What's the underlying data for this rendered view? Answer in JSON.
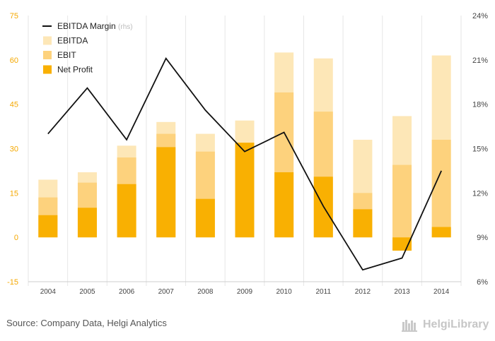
{
  "chart_data": {
    "type": "bar",
    "categories": [
      "2004",
      "2005",
      "2006",
      "2007",
      "2008",
      "2009",
      "2010",
      "2011",
      "2012",
      "2013",
      "2014"
    ],
    "series": [
      {
        "name": "EBITDA Margin",
        "note": "(rhs)",
        "kind": "line",
        "axis": "right",
        "values": [
          16.0,
          19.1,
          15.6,
          21.1,
          17.6,
          14.8,
          16.1,
          11.1,
          6.8,
          7.6,
          13.5
        ]
      },
      {
        "name": "EBITDA",
        "kind": "bar",
        "axis": "left",
        "values": [
          19.5,
          22.0,
          31.0,
          39.0,
          35.0,
          39.5,
          62.5,
          60.5,
          33.0,
          41.0,
          61.5
        ]
      },
      {
        "name": "EBIT",
        "kind": "bar",
        "axis": "left",
        "values": [
          13.5,
          18.5,
          27.0,
          35.0,
          29.0,
          32.0,
          49.0,
          42.5,
          15.0,
          24.5,
          33.0
        ]
      },
      {
        "name": "Net Profit",
        "kind": "bar",
        "axis": "left",
        "values": [
          7.5,
          10.0,
          18.0,
          30.5,
          13.0,
          32.0,
          22.0,
          20.5,
          9.5,
          -4.5,
          3.5
        ]
      }
    ],
    "ylim_left": [
      -15,
      75
    ],
    "yticks_left": [
      "-15",
      "0",
      "15",
      "30",
      "45",
      "60",
      "75"
    ],
    "ylim_right": [
      6,
      24
    ],
    "yticks_right": [
      "6%",
      "9%",
      "12%",
      "15%",
      "18%",
      "21%",
      "24%"
    ],
    "legend_position": "top-left",
    "grid": "vertical",
    "colors": {
      "ebitda": "#fde7b7",
      "ebit": "#fdd27d",
      "net_profit": "#f9b002",
      "line": "#111111",
      "left_axis": "#f5a800",
      "right_axis": "#444444",
      "rhs_note": "#bbbbbb",
      "grid": "#e6e6e6"
    }
  },
  "footer": {
    "source": "Source: Company Data, Helgi Analytics",
    "logo_text": "HelgiLibrary"
  }
}
